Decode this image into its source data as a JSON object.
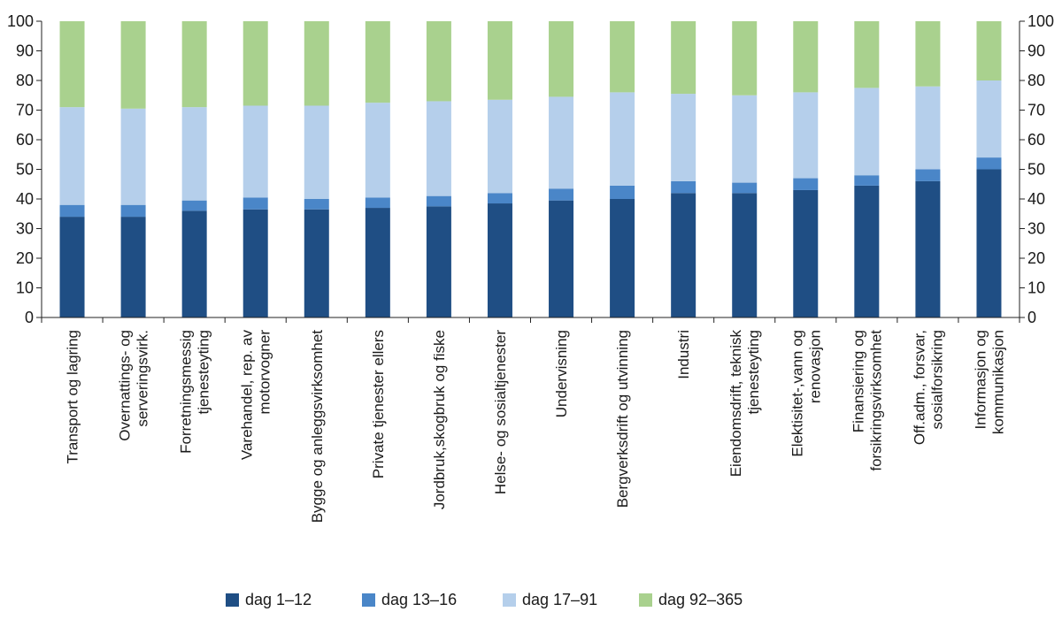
{
  "chart_data": {
    "type": "bar",
    "stacked": true,
    "orientation": "vertical",
    "categories": [
      [
        "Transport og lagring"
      ],
      [
        "Overnattings- og",
        "serveringsvirk."
      ],
      [
        "Forretningsmessig",
        "tjenesteyting"
      ],
      [
        "Varehandel, rep. av",
        "motorvogner"
      ],
      [
        "Bygge og anleggsvirksomhet"
      ],
      [
        "Private tjenester ellers"
      ],
      [
        "Jordbruk,skogbruk og fiske"
      ],
      [
        "Helse- og sosialtjenester"
      ],
      [
        "Undervisning"
      ],
      [
        "Bergverksdrift og utvinning"
      ],
      [
        "Industri"
      ],
      [
        "Eiendomsdrift, teknisk",
        "tjenesteyting"
      ],
      [
        "Elektisitet-,vann og",
        "renovasjon"
      ],
      [
        "Finansiering og",
        "forsikringsvirksomhet"
      ],
      [
        "Off.adm., forsvar,",
        "sosialforsikring"
      ],
      [
        "Informasjon og",
        "kommunikasjon"
      ]
    ],
    "series": [
      {
        "name": "dag 1–12",
        "color": "#1f4e84",
        "values": [
          34,
          34,
          36,
          36.5,
          36.5,
          37,
          37.5,
          38.5,
          39.5,
          40,
          42,
          42,
          43,
          44.5,
          46,
          50
        ]
      },
      {
        "name": "dag 13–16",
        "color": "#4a86c8",
        "values": [
          4,
          4,
          3.5,
          4,
          3.5,
          3.5,
          3.5,
          3.5,
          4,
          4.5,
          4,
          3.5,
          4,
          3.5,
          4,
          4
        ]
      },
      {
        "name": "dag 17–91",
        "color": "#b5cfeb",
        "values": [
          33,
          32.5,
          31.5,
          31,
          31.5,
          32,
          32,
          31.5,
          31,
          31.5,
          29.5,
          29.5,
          29,
          29.5,
          28,
          26
        ]
      },
      {
        "name": "dag 92–365",
        "color": "#a9d18e",
        "values": [
          29,
          29.5,
          29,
          28.5,
          28.5,
          27.5,
          27,
          26.5,
          25.5,
          24,
          24.5,
          25,
          24,
          22.5,
          22,
          20
        ]
      }
    ],
    "yticks": [
      0,
      10,
      20,
      30,
      40,
      50,
      60,
      70,
      80,
      90,
      100
    ],
    "ylim": [
      0,
      100
    ],
    "secondary_y_axis": true,
    "grid": false,
    "legend_position": "bottom",
    "title": "",
    "xlabel": "",
    "ylabel": ""
  }
}
